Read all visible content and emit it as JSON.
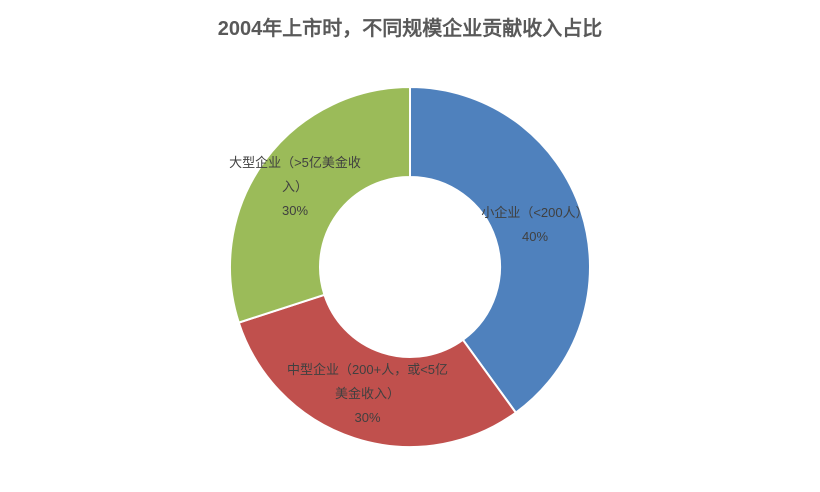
{
  "chart_data": {
    "type": "donut",
    "title": "2004年上市时，不同规模企业贡献收入占比",
    "categories": [
      "小企业（<200人）",
      "中型企业（200+人，或<5亿美金收入）",
      "大型企业（>5亿美金收入）"
    ],
    "values": [
      40,
      30,
      30
    ],
    "value_labels": [
      "40%",
      "30%",
      "30%"
    ],
    "colors": [
      "#4f81bd",
      "#c0504d",
      "#9bbb59"
    ]
  }
}
